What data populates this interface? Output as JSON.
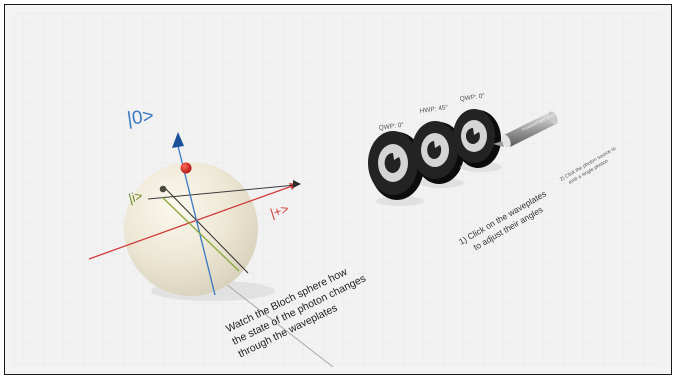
{
  "scene": {
    "bloch_labels": {
      "zero_ket": "|0>",
      "i_ket": "|i>",
      "plus_ket": "|+>"
    },
    "waveplates": [
      {
        "label": "QWP: 0°"
      },
      {
        "label": "HWP: 45°"
      },
      {
        "label": "QWP: 0°"
      }
    ],
    "photon_source_label": "Polarized light source",
    "instructions": {
      "step1_line1": "1) Click on the waveplates",
      "step1_line2": "to adjust their angles",
      "step2_line1": "2) Click the photon source to",
      "step2_line2": "emit a single photon",
      "bloch_line1": "Watch the Bloch sphere how",
      "bloch_line2": "the state of the photon changes",
      "bloch_line3": "through the waveplates"
    },
    "colors": {
      "axis_z": "#3a78c4",
      "axis_x": "#d23b3b",
      "axis_y": "#2d2d2d",
      "state_vector": "#8aa83a",
      "photon_dot": "#cc2020",
      "sphere": "#ece6d3"
    }
  }
}
